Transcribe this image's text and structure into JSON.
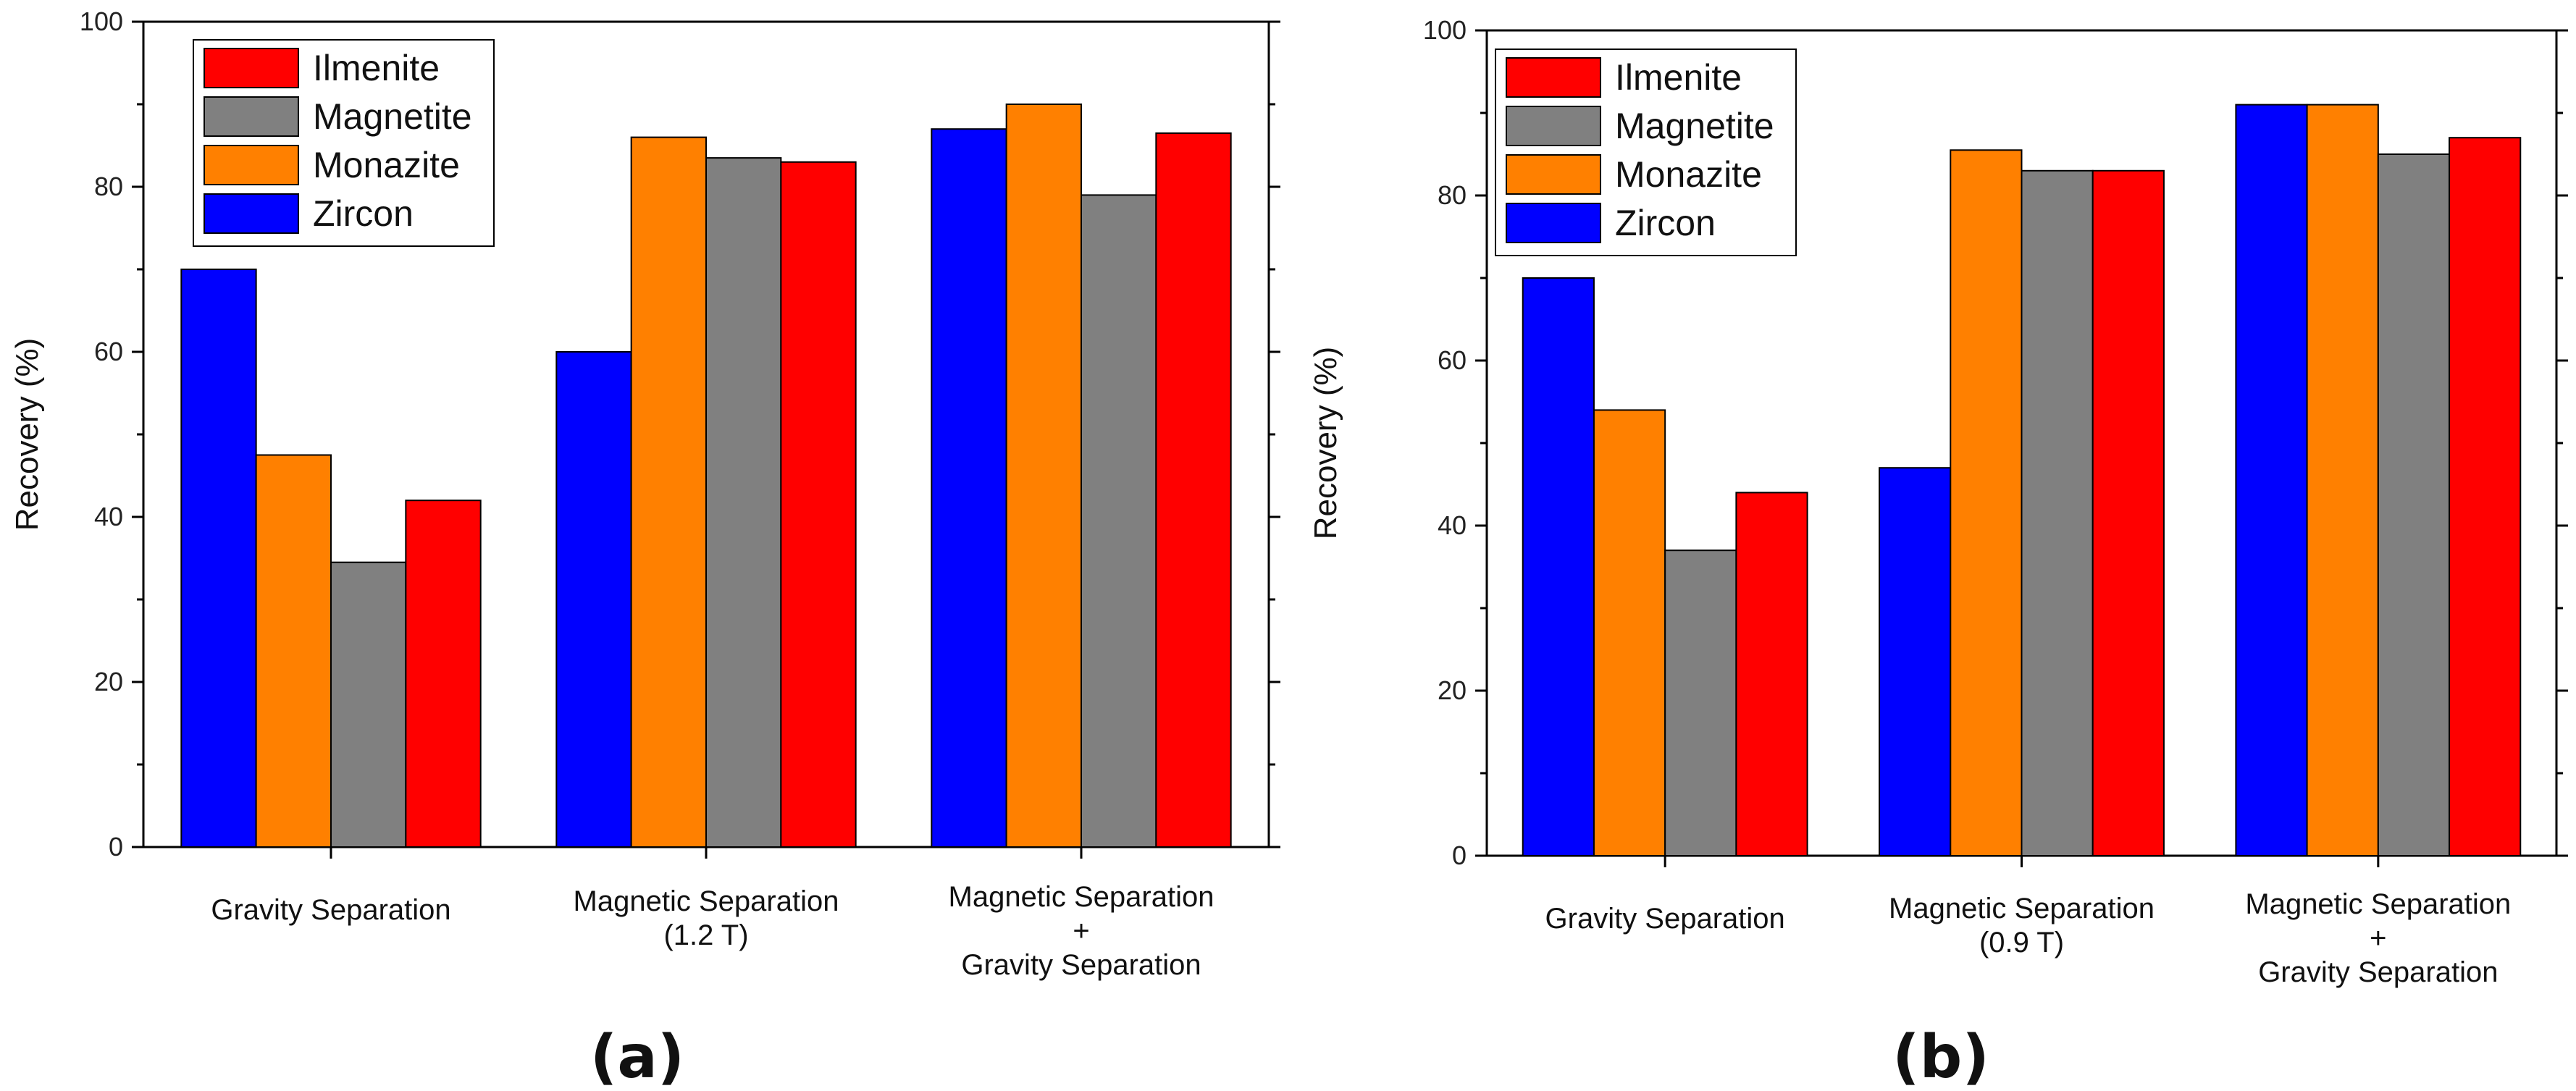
{
  "chart_data": [
    {
      "type": "bar",
      "panel_label": "(a)",
      "ylabel": "Recovery (%)",
      "xlabel": "",
      "ylim": [
        0,
        100
      ],
      "yticks": [
        0,
        20,
        40,
        60,
        80,
        100
      ],
      "categories": [
        [
          "Gravity Separation"
        ],
        [
          "Magnetic Separation",
          "(1.2 T)"
        ],
        [
          "Magnetic Separation",
          "+",
          "Gravity Separation"
        ]
      ],
      "series": [
        {
          "name": "Zircon",
          "color": "#0000FF",
          "values": [
            70,
            60,
            87
          ]
        },
        {
          "name": "Monazite",
          "color": "#FF8000",
          "values": [
            47.5,
            86,
            90
          ]
        },
        {
          "name": "Magnetite",
          "color": "#808080",
          "values": [
            34.5,
            83.5,
            79
          ]
        },
        {
          "name": "Ilmenite",
          "color": "#FF0000",
          "values": [
            42,
            83,
            86.5
          ]
        }
      ],
      "legend": {
        "placement": "top-left",
        "order": [
          "Ilmenite",
          "Magnetite",
          "Monazite",
          "Zircon"
        ]
      },
      "grid": false
    },
    {
      "type": "bar",
      "panel_label": "(b)",
      "ylabel": "Recovery (%)",
      "xlabel": "",
      "ylim": [
        0,
        100
      ],
      "yticks": [
        0,
        20,
        40,
        60,
        80,
        100
      ],
      "categories": [
        [
          "Gravity Separation"
        ],
        [
          "Magnetic Separation",
          "(0.9 T)"
        ],
        [
          "Magnetic Separation",
          "+",
          "Gravity Separation"
        ]
      ],
      "series": [
        {
          "name": "Zircon",
          "color": "#0000FF",
          "values": [
            70,
            47,
            91
          ]
        },
        {
          "name": "Monazite",
          "color": "#FF8000",
          "values": [
            54,
            85.5,
            91
          ]
        },
        {
          "name": "Magnetite",
          "color": "#808080",
          "values": [
            37,
            83,
            85
          ]
        },
        {
          "name": "Ilmenite",
          "color": "#FF0000",
          "values": [
            44,
            83,
            87
          ]
        }
      ],
      "legend": {
        "placement": "top-left",
        "order": [
          "Ilmenite",
          "Magnetite",
          "Monazite",
          "Zircon"
        ]
      },
      "grid": false
    }
  ]
}
